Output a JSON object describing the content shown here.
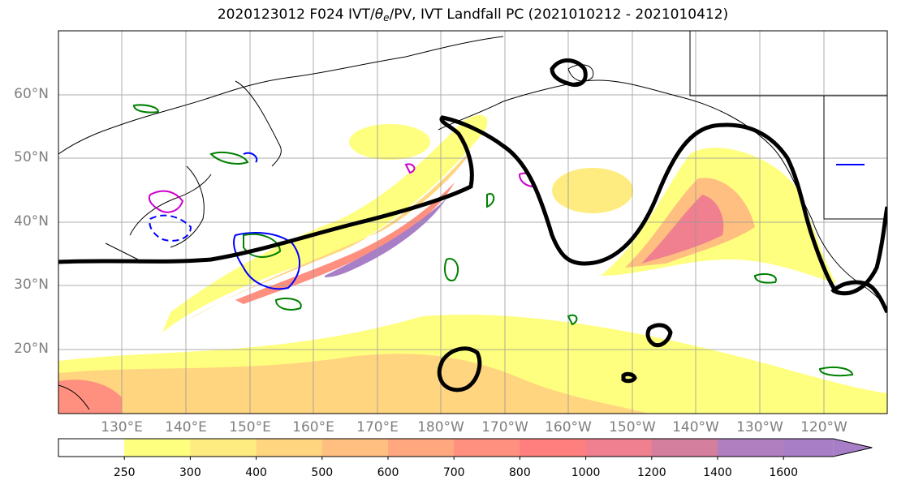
{
  "title": {
    "prefix": "2020123012 F024 IVT/",
    "theta": "θ",
    "theta_sub": "e",
    "suffix": "/PV, IVT Landfall PC (2021010212 - 2021010412)"
  },
  "map": {
    "lat_labels": [
      "60°N",
      "50°N",
      "40°N",
      "30°N",
      "20°N"
    ],
    "lon_labels": [
      "130°E",
      "140°E",
      "150°E",
      "160°E",
      "170°E",
      "180°W",
      "170°W",
      "160°W",
      "150°W",
      "140°W",
      "130°W",
      "120°W"
    ],
    "gridlines": true,
    "ivt_colors": [
      "#ffff7f",
      "#ffec80",
      "#ffd580",
      "#ffbf80",
      "#ffa880",
      "#ff8f7f",
      "#f07f8f",
      "#cc7f9f",
      "#a87fc7"
    ]
  },
  "colorbar": {
    "ticks": [
      "250",
      "300",
      "400",
      "500",
      "600",
      "700",
      "800",
      "1000",
      "1200",
      "1400",
      "1600"
    ],
    "colors": [
      "#ffffff",
      "#ffff7f",
      "#ffec80",
      "#ffd580",
      "#ffbf80",
      "#ffa880",
      "#ff8f7f",
      "#ff7f7f",
      "#f07f8f",
      "#d57f9f",
      "#b07fbf",
      "#a87fc7"
    ]
  }
}
